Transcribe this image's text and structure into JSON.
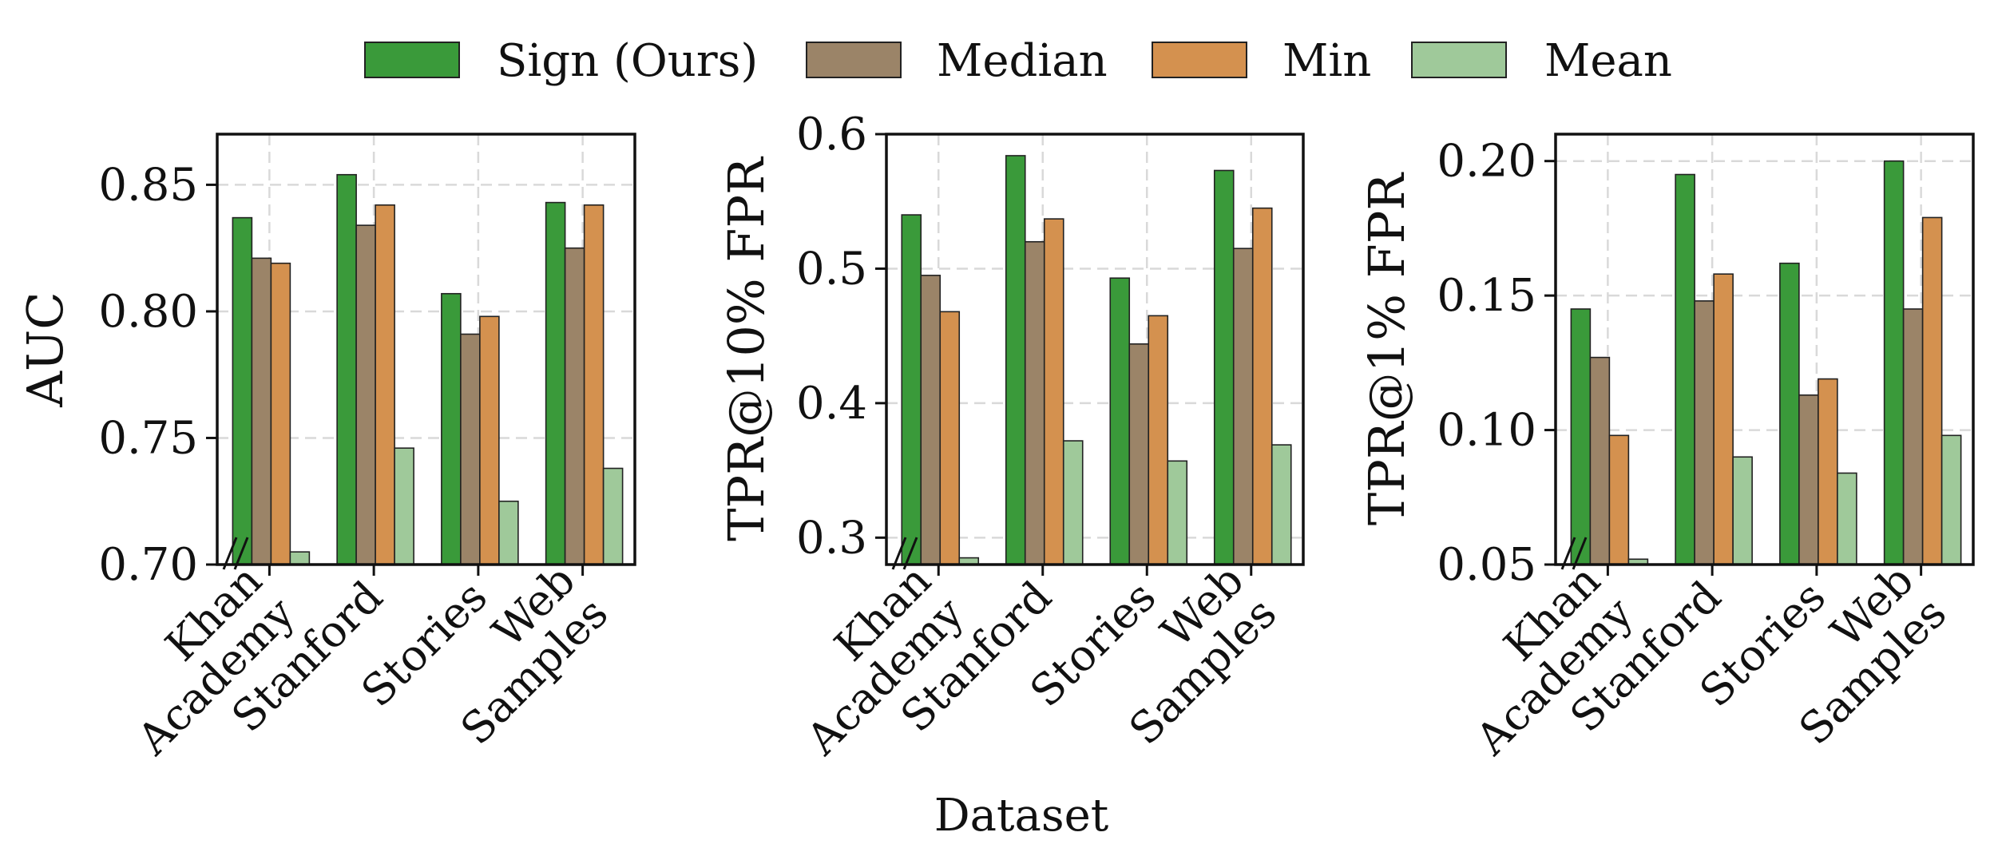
{
  "legend": [
    {
      "label": "Sign (Ours)",
      "color": "#3a9a3a"
    },
    {
      "label": "Median",
      "color": "#9b8468"
    },
    {
      "label": "Min",
      "color": "#d4914f"
    },
    {
      "label": "Mean",
      "color": "#9fc99a"
    }
  ],
  "xlabel": "Dataset",
  "chart_data": [
    {
      "type": "bar",
      "ylabel": "AUC",
      "ylim": [
        0.7,
        0.87
      ],
      "yticks": [
        "0.70",
        "0.75",
        "0.80",
        "0.85"
      ],
      "categories": [
        [
          "Khan",
          "Academy"
        ],
        [
          "Stanford"
        ],
        [
          "Stories"
        ],
        [
          "Web",
          "Samples"
        ]
      ],
      "series": [
        {
          "name": "Sign (Ours)",
          "values": [
            0.837,
            0.854,
            0.807,
            0.843
          ]
        },
        {
          "name": "Median",
          "values": [
            0.821,
            0.834,
            0.791,
            0.825
          ]
        },
        {
          "name": "Min",
          "values": [
            0.819,
            0.842,
            0.798,
            0.842
          ]
        },
        {
          "name": "Mean",
          "values": [
            0.705,
            0.746,
            0.725,
            0.738
          ]
        }
      ]
    },
    {
      "type": "bar",
      "ylabel": "TPR@10% FPR",
      "ylim": [
        0.28,
        0.6
      ],
      "yticks": [
        "0.3",
        "0.4",
        "0.5",
        "0.6"
      ],
      "categories": [
        [
          "Khan",
          "Academy"
        ],
        [
          "Stanford"
        ],
        [
          "Stories"
        ],
        [
          "Web",
          "Samples"
        ]
      ],
      "series": [
        {
          "name": "Sign (Ours)",
          "values": [
            0.54,
            0.584,
            0.493,
            0.573
          ]
        },
        {
          "name": "Median",
          "values": [
            0.495,
            0.52,
            0.444,
            0.515
          ]
        },
        {
          "name": "Min",
          "values": [
            0.468,
            0.537,
            0.465,
            0.545
          ]
        },
        {
          "name": "Mean",
          "values": [
            0.285,
            0.372,
            0.357,
            0.369
          ]
        }
      ]
    },
    {
      "type": "bar",
      "ylabel": "TPR@1% FPR",
      "ylim": [
        0.05,
        0.21
      ],
      "yticks": [
        "0.05",
        "0.10",
        "0.15",
        "0.20"
      ],
      "categories": [
        [
          "Khan",
          "Academy"
        ],
        [
          "Stanford"
        ],
        [
          "Stories"
        ],
        [
          "Web",
          "Samples"
        ]
      ],
      "series": [
        {
          "name": "Sign (Ours)",
          "values": [
            0.145,
            0.195,
            0.162,
            0.2
          ]
        },
        {
          "name": "Median",
          "values": [
            0.127,
            0.148,
            0.113,
            0.145
          ]
        },
        {
          "name": "Min",
          "values": [
            0.098,
            0.158,
            0.119,
            0.179
          ]
        },
        {
          "name": "Mean",
          "values": [
            0.052,
            0.09,
            0.084,
            0.098
          ]
        }
      ]
    }
  ]
}
